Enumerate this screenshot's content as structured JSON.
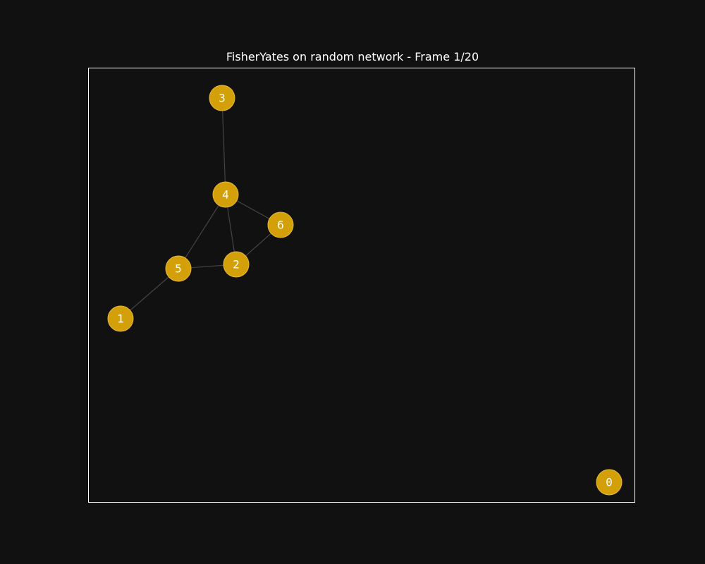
{
  "title": "FisherYates on random network - Frame 1/20",
  "colors": {
    "background": "#111111",
    "node_fill": "#d4a009",
    "node_stroke": "#e6b93a",
    "node_label": "#ffffff",
    "edge": "#444444",
    "frame": "#ffffff"
  },
  "graph": {
    "nodes": [
      {
        "id": "0",
        "label": "0"
      },
      {
        "id": "1",
        "label": "1"
      },
      {
        "id": "2",
        "label": "2"
      },
      {
        "id": "3",
        "label": "3"
      },
      {
        "id": "4",
        "label": "4"
      },
      {
        "id": "5",
        "label": "5"
      },
      {
        "id": "6",
        "label": "6"
      }
    ],
    "edges": [
      [
        "3",
        "4"
      ],
      [
        "4",
        "6"
      ],
      [
        "4",
        "5"
      ],
      [
        "4",
        "2"
      ],
      [
        "6",
        "2"
      ],
      [
        "5",
        "2"
      ],
      [
        "5",
        "1"
      ]
    ]
  }
}
